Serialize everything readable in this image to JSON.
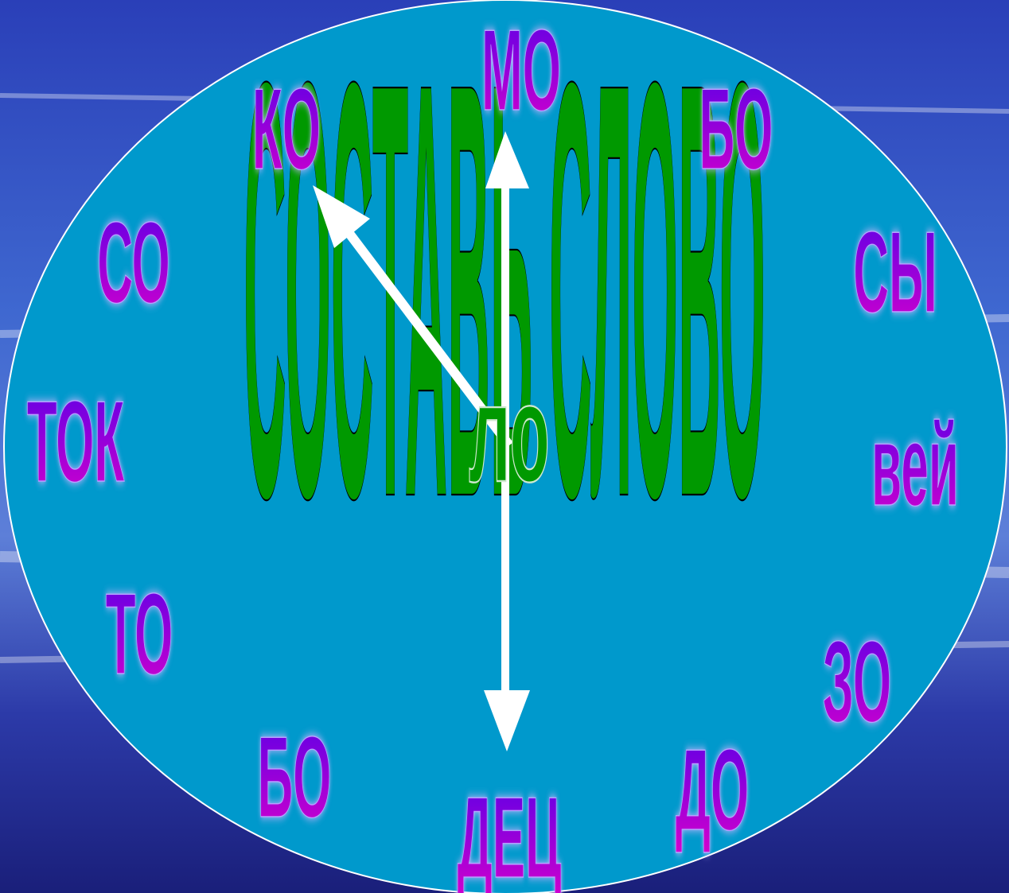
{
  "title": "СОСТАВЬ СЛОВО",
  "center": "ло",
  "syllables": [
    "КО",
    "МО",
    "БО",
    "СО",
    "СЫ",
    "ТОК",
    "вей",
    "ТО",
    "ЗО",
    "БО",
    "ДЕЦ",
    "ДО"
  ]
}
